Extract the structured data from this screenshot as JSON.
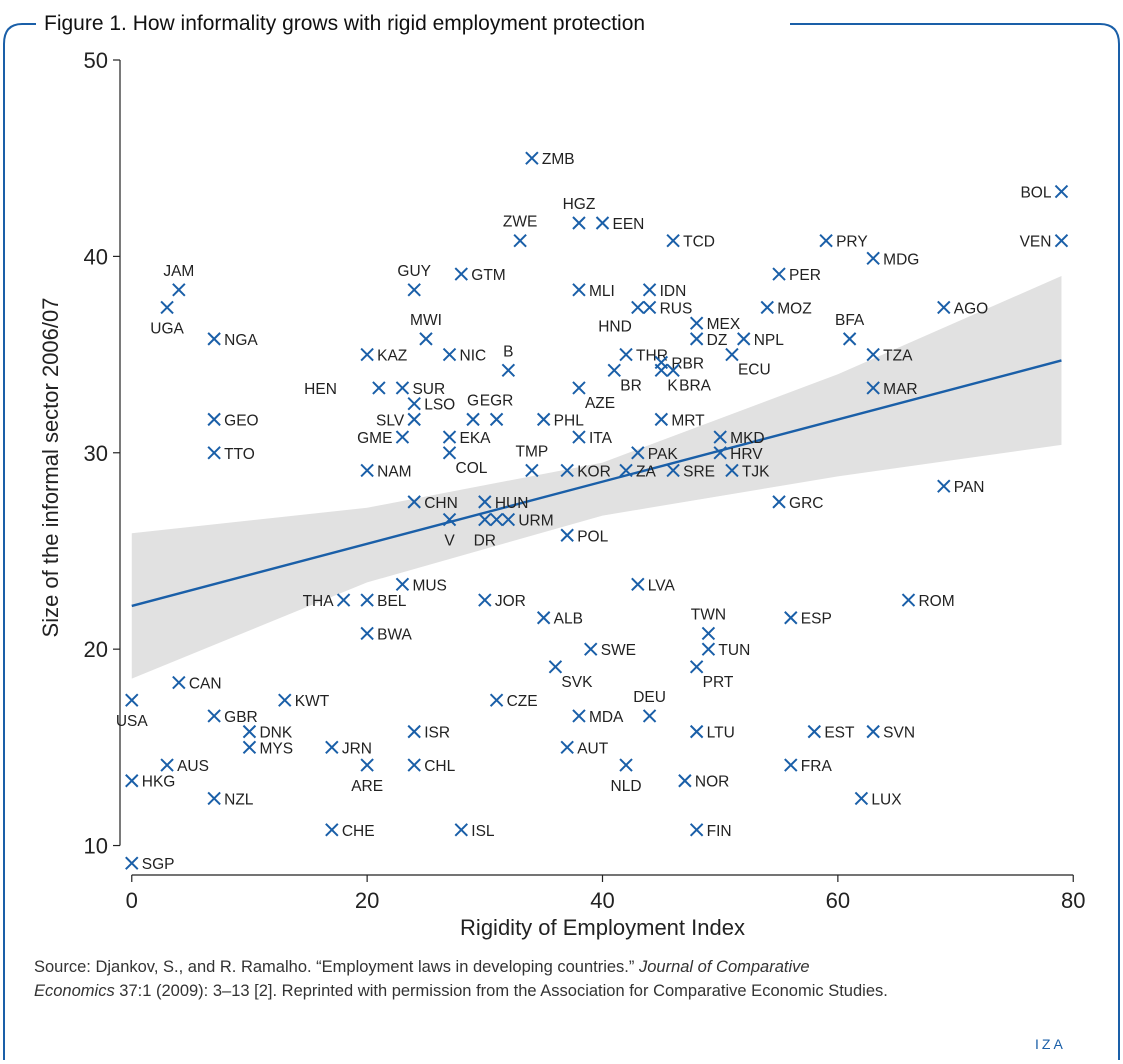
{
  "figure": {
    "title": "Figure 1. How informality grows with rigid employment protection",
    "source_prefix": "Source: Djankov, S., and R. Ramalho. “Employment laws in developing countries.” ",
    "source_journal_part1": "Journal of Comparative",
    "source_journal_part2": "Economics",
    "source_suffix": " 37:1 (2009): 3–13 [2]. Reprinted with permission from the Association for Comparative Economic Studies.",
    "logo_text": "IZA",
    "colors": {
      "marker": "#1a5fa8",
      "fit_line": "#1a5fa8",
      "ci_band": "#e1e1e1",
      "frame": "#1a5fa8"
    }
  },
  "chart_data": {
    "type": "scatter",
    "xlabel": "Rigidity of Employment Index",
    "ylabel": "Size of the informal sector 2006/07",
    "xlim": [
      -1,
      81
    ],
    "ylim": [
      8.5,
      50
    ],
    "xticks": [
      0,
      20,
      40,
      60,
      80
    ],
    "yticks": [
      10,
      20,
      30,
      40,
      50
    ],
    "grid": false,
    "fit_line": {
      "x": [
        0,
        79
      ],
      "y": [
        22.2,
        34.7
      ]
    },
    "ci_band": {
      "x": [
        0,
        20,
        40,
        60,
        79
      ],
      "upper": [
        25.9,
        27.2,
        29.5,
        34.0,
        39.0
      ],
      "lower": [
        18.5,
        23.4,
        26.8,
        28.8,
        30.4
      ]
    },
    "points": [
      {
        "label": "ZMB",
        "x": 34,
        "y": 45,
        "pos": "right"
      },
      {
        "label": "HGZ",
        "x": 38,
        "y": 41.7,
        "pos": "above"
      },
      {
        "label": "EEN",
        "x": 40,
        "y": 41.7,
        "pos": "right"
      },
      {
        "label": "ZWE",
        "x": 33,
        "y": 40.8,
        "pos": "above"
      },
      {
        "label": "TCD",
        "x": 46,
        "y": 40.8,
        "pos": "right"
      },
      {
        "label": "PRY",
        "x": 59,
        "y": 40.8,
        "pos": "right"
      },
      {
        "label": "BOL",
        "x": 79,
        "y": 43.3,
        "pos": "left"
      },
      {
        "label": "VEN",
        "x": 79,
        "y": 40.8,
        "pos": "left"
      },
      {
        "label": "MDG",
        "x": 63,
        "y": 39.9,
        "pos": "right"
      },
      {
        "label": "JAM",
        "x": 4,
        "y": 38.3,
        "pos": "above"
      },
      {
        "label": "UGA",
        "x": 3,
        "y": 37.4,
        "pos": "below"
      },
      {
        "label": "GUY",
        "x": 24,
        "y": 38.3,
        "pos": "above"
      },
      {
        "label": "GTM",
        "x": 28,
        "y": 39.1,
        "pos": "right"
      },
      {
        "label": "MLI",
        "x": 38,
        "y": 38.3,
        "pos": "right"
      },
      {
        "label": "IDN",
        "x": 44,
        "y": 38.3,
        "pos": "right"
      },
      {
        "label": "PER",
        "x": 55,
        "y": 39.1,
        "pos": "right"
      },
      {
        "label": "RUS",
        "x": 44,
        "y": 37.4,
        "pos": "right"
      },
      {
        "label": "MOZ",
        "x": 54,
        "y": 37.4,
        "pos": "right"
      },
      {
        "label": "AGO",
        "x": 69,
        "y": 37.4,
        "pos": "right"
      },
      {
        "label": "MEX",
        "x": 48,
        "y": 36.6,
        "pos": "right"
      },
      {
        "label": "BFA",
        "x": 61,
        "y": 35.8,
        "pos": "above"
      },
      {
        "label": "HND",
        "x": 43,
        "y": 37.4,
        "pos": "belowleft"
      },
      {
        "label": "NGA",
        "x": 7,
        "y": 35.8,
        "pos": "right"
      },
      {
        "label": "MWI",
        "x": 25,
        "y": 35.8,
        "pos": "above"
      },
      {
        "label": "KAZ",
        "x": 20,
        "y": 35,
        "pos": "right"
      },
      {
        "label": "NIC",
        "x": 27,
        "y": 35,
        "pos": "right"
      },
      {
        "label": "B",
        "x": 32,
        "y": 34.2,
        "pos": "above"
      },
      {
        "label": "DZ",
        "x": 48,
        "y": 35.8,
        "pos": "right"
      },
      {
        "label": "NPL",
        "x": 52,
        "y": 35.8,
        "pos": "right"
      },
      {
        "label": "THR",
        "x": 42,
        "y": 35,
        "pos": "right"
      },
      {
        "label": "ECU",
        "x": 51,
        "y": 35,
        "pos": "belowright"
      },
      {
        "label": "TZA",
        "x": 63,
        "y": 35,
        "pos": "right"
      },
      {
        "label": "RBR",
        "x": 45,
        "y": 34.6,
        "pos": "right"
      },
      {
        "label": "BR",
        "x": 41,
        "y": 34.2,
        "pos": "belowright"
      },
      {
        "label": "K",
        "x": 45,
        "y": 34.2,
        "pos": "belowright"
      },
      {
        "label": "BRA",
        "x": 46,
        "y": 34.2,
        "pos": "belowright"
      },
      {
        "label": "AZE",
        "x": 38,
        "y": 33.3,
        "pos": "belowright"
      },
      {
        "label": "MAR",
        "x": 63,
        "y": 33.3,
        "pos": "right"
      },
      {
        "label": "HEN",
        "x": 21,
        "y": 33.3,
        "pos": "far-left"
      },
      {
        "label": "SUR",
        "x": 23,
        "y": 33.3,
        "pos": "right"
      },
      {
        "label": "LSO",
        "x": 24,
        "y": 32.5,
        "pos": "right"
      },
      {
        "label": "G",
        "x": 29,
        "y": 31.7,
        "pos": "above"
      },
      {
        "label": "EGR",
        "x": 31,
        "y": 31.7,
        "pos": "above"
      },
      {
        "label": "SLV",
        "x": 24,
        "y": 31.7,
        "pos": "left"
      },
      {
        "label": "GEO",
        "x": 7,
        "y": 31.7,
        "pos": "right"
      },
      {
        "label": "PHL",
        "x": 35,
        "y": 31.7,
        "pos": "right"
      },
      {
        "label": "MRT",
        "x": 45,
        "y": 31.7,
        "pos": "right"
      },
      {
        "label": "GME",
        "x": 23,
        "y": 30.8,
        "pos": "left"
      },
      {
        "label": "EKA",
        "x": 27,
        "y": 30.8,
        "pos": "right"
      },
      {
        "label": "ITA",
        "x": 38,
        "y": 30.8,
        "pos": "right"
      },
      {
        "label": "MKD",
        "x": 50,
        "y": 30.8,
        "pos": "right"
      },
      {
        "label": "TTO",
        "x": 7,
        "y": 30,
        "pos": "right"
      },
      {
        "label": "COL",
        "x": 27,
        "y": 30,
        "pos": "belowright"
      },
      {
        "label": "TMP",
        "x": 34,
        "y": 29.1,
        "pos": "above"
      },
      {
        "label": "PAK",
        "x": 43,
        "y": 30,
        "pos": "right"
      },
      {
        "label": "HRV",
        "x": 50,
        "y": 30,
        "pos": "right"
      },
      {
        "label": "NAM",
        "x": 20,
        "y": 29.1,
        "pos": "right"
      },
      {
        "label": "KOR",
        "x": 37,
        "y": 29.1,
        "pos": "right"
      },
      {
        "label": "ZA",
        "x": 42,
        "y": 29.1,
        "pos": "right"
      },
      {
        "label": "SRE",
        "x": 46,
        "y": 29.1,
        "pos": "right"
      },
      {
        "label": "TJK",
        "x": 51,
        "y": 29.1,
        "pos": "right"
      },
      {
        "label": "PAN",
        "x": 69,
        "y": 28.3,
        "pos": "right"
      },
      {
        "label": "CHN",
        "x": 24,
        "y": 27.5,
        "pos": "right"
      },
      {
        "label": "HUN",
        "x": 30,
        "y": 27.5,
        "pos": "right"
      },
      {
        "label": "GRC",
        "x": 55,
        "y": 27.5,
        "pos": "right"
      },
      {
        "label": "URM",
        "x": 32,
        "y": 26.6,
        "pos": "right"
      },
      {
        "label": "DR",
        "x": 30,
        "y": 26.6,
        "pos": "below"
      },
      {
        "label": "",
        "x": 31,
        "y": 26.6,
        "pos": "none"
      },
      {
        "label": "V",
        "x": 27,
        "y": 26.6,
        "pos": "below"
      },
      {
        "label": "POL",
        "x": 37,
        "y": 25.8,
        "pos": "right"
      },
      {
        "label": "MUS",
        "x": 23,
        "y": 23.3,
        "pos": "right"
      },
      {
        "label": "LVA",
        "x": 43,
        "y": 23.3,
        "pos": "right"
      },
      {
        "label": "THA",
        "x": 18,
        "y": 22.5,
        "pos": "left"
      },
      {
        "label": "BEL",
        "x": 20,
        "y": 22.5,
        "pos": "right"
      },
      {
        "label": "JOR",
        "x": 30,
        "y": 22.5,
        "pos": "right"
      },
      {
        "label": "ROM",
        "x": 66,
        "y": 22.5,
        "pos": "right"
      },
      {
        "label": "ALB",
        "x": 35,
        "y": 21.6,
        "pos": "right"
      },
      {
        "label": "ESP",
        "x": 56,
        "y": 21.6,
        "pos": "right"
      },
      {
        "label": "TWN",
        "x": 49,
        "y": 20.8,
        "pos": "above"
      },
      {
        "label": "BWA",
        "x": 20,
        "y": 20.8,
        "pos": "right"
      },
      {
        "label": "SWE",
        "x": 39,
        "y": 20,
        "pos": "right"
      },
      {
        "label": "TUN",
        "x": 49,
        "y": 20,
        "pos": "right"
      },
      {
        "label": "SVK",
        "x": 36,
        "y": 19.1,
        "pos": "belowright"
      },
      {
        "label": "PRT",
        "x": 48,
        "y": 19.1,
        "pos": "belowright"
      },
      {
        "label": "CAN",
        "x": 4,
        "y": 18.3,
        "pos": "right"
      },
      {
        "label": "USA",
        "x": 0,
        "y": 17.4,
        "pos": "below"
      },
      {
        "label": "KWT",
        "x": 13,
        "y": 17.4,
        "pos": "right"
      },
      {
        "label": "CZE",
        "x": 31,
        "y": 17.4,
        "pos": "right"
      },
      {
        "label": "DEU",
        "x": 44,
        "y": 16.6,
        "pos": "above"
      },
      {
        "label": "GBR",
        "x": 7,
        "y": 16.6,
        "pos": "right"
      },
      {
        "label": "MDA",
        "x": 38,
        "y": 16.6,
        "pos": "right"
      },
      {
        "label": "DNK",
        "x": 10,
        "y": 15.8,
        "pos": "right"
      },
      {
        "label": "ISR",
        "x": 24,
        "y": 15.8,
        "pos": "right"
      },
      {
        "label": "LTU",
        "x": 48,
        "y": 15.8,
        "pos": "right"
      },
      {
        "label": "EST",
        "x": 58,
        "y": 15.8,
        "pos": "right"
      },
      {
        "label": "SVN",
        "x": 63,
        "y": 15.8,
        "pos": "right"
      },
      {
        "label": "MYS",
        "x": 10,
        "y": 15,
        "pos": "right"
      },
      {
        "label": "JRN",
        "x": 17,
        "y": 15,
        "pos": "right"
      },
      {
        "label": "AUT",
        "x": 37,
        "y": 15,
        "pos": "right"
      },
      {
        "label": "AUS",
        "x": 3,
        "y": 14.1,
        "pos": "right"
      },
      {
        "label": "ARE",
        "x": 20,
        "y": 14.1,
        "pos": "below"
      },
      {
        "label": "CHL",
        "x": 24,
        "y": 14.1,
        "pos": "right"
      },
      {
        "label": "NLD",
        "x": 42,
        "y": 14.1,
        "pos": "below"
      },
      {
        "label": "FRA",
        "x": 56,
        "y": 14.1,
        "pos": "right"
      },
      {
        "label": "HKG",
        "x": 0,
        "y": 13.3,
        "pos": "right"
      },
      {
        "label": "NOR",
        "x": 47,
        "y": 13.3,
        "pos": "right"
      },
      {
        "label": "NZL",
        "x": 7,
        "y": 12.4,
        "pos": "right"
      },
      {
        "label": "LUX",
        "x": 62,
        "y": 12.4,
        "pos": "right"
      },
      {
        "label": "CHE",
        "x": 17,
        "y": 10.8,
        "pos": "right"
      },
      {
        "label": "ISL",
        "x": 28,
        "y": 10.8,
        "pos": "right"
      },
      {
        "label": "FIN",
        "x": 48,
        "y": 10.8,
        "pos": "right"
      },
      {
        "label": "SGP",
        "x": 0,
        "y": 9.1,
        "pos": "right"
      }
    ]
  }
}
